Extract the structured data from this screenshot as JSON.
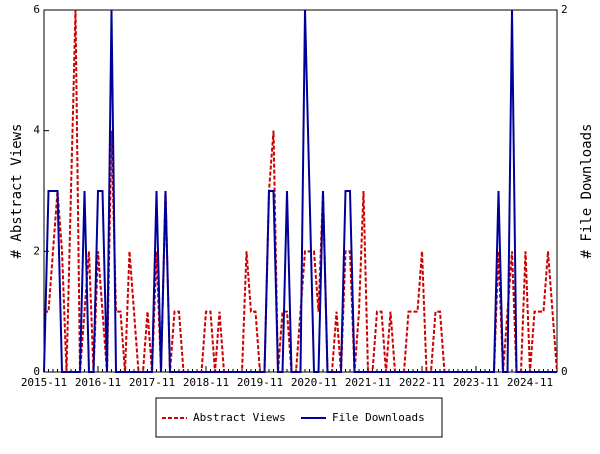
{
  "chart_data": {
    "type": "line",
    "categories": [
      "2015-11",
      null,
      null,
      null,
      null,
      null,
      null,
      null,
      null,
      null,
      null,
      null,
      "2016-11",
      null,
      null,
      null,
      null,
      null,
      null,
      null,
      null,
      null,
      null,
      null,
      "2017-11",
      null,
      null,
      null,
      null,
      null,
      null,
      null,
      null,
      null,
      null,
      null,
      "2018-11",
      null,
      null,
      null,
      null,
      null,
      null,
      null,
      null,
      null,
      null,
      null,
      "2019-11",
      null,
      null,
      null,
      null,
      null,
      null,
      null,
      null,
      null,
      null,
      null,
      "2020-11",
      null,
      null,
      null,
      null,
      null,
      null,
      null,
      null,
      null,
      null,
      null,
      "2021-11",
      null,
      null,
      null,
      null,
      null,
      null,
      null,
      null,
      null,
      null,
      null,
      "2022-11",
      null,
      null,
      null,
      null,
      null,
      null,
      null,
      null,
      null,
      null,
      null,
      "2023-11",
      null,
      null,
      null,
      null,
      null,
      null,
      null,
      null,
      null,
      null,
      null,
      "2024-11",
      null,
      null,
      null,
      null,
      null,
      null
    ],
    "series": [
      {
        "name": "Abstract Views",
        "color": "#cc0000",
        "dash": true,
        "values": [
          1,
          1,
          2,
          3,
          2,
          0,
          3,
          6,
          0,
          1,
          2,
          0,
          2,
          1,
          0,
          4,
          1,
          1,
          0,
          2,
          1,
          0,
          0,
          1,
          0,
          2,
          0,
          3,
          0,
          1,
          1,
          0,
          0,
          0,
          0,
          0,
          1,
          1,
          0,
          1,
          0,
          0,
          0,
          0,
          0,
          2,
          1,
          1,
          0,
          0,
          3,
          4,
          0,
          1,
          1,
          0,
          0,
          1,
          2,
          2,
          2,
          1,
          3,
          0,
          0,
          1,
          0,
          2,
          2,
          0,
          1,
          3,
          0,
          0,
          1,
          1,
          0,
          1,
          0,
          0,
          0,
          1,
          1,
          1,
          2,
          0,
          0,
          1,
          1,
          0,
          0,
          0,
          0,
          0,
          0,
          0,
          0,
          0,
          0,
          0,
          0,
          2,
          0,
          1,
          2,
          0,
          0,
          2,
          0,
          1,
          1,
          1,
          2,
          1,
          0
        ]
      },
      {
        "name": "File Downloads",
        "color": "#000099",
        "axis": "y2",
        "values": [
          0,
          1,
          1,
          1,
          0,
          0,
          0,
          0,
          0,
          1,
          0,
          0,
          1,
          1,
          0,
          2,
          0,
          0,
          0,
          0,
          0,
          0,
          0,
          0,
          0,
          1,
          0,
          1,
          0,
          0,
          0,
          0,
          0,
          0,
          0,
          0,
          0,
          0,
          0,
          0,
          0,
          0,
          0,
          0,
          0,
          0,
          0,
          0,
          0,
          0,
          1,
          1,
          0,
          0,
          1,
          0,
          0,
          0,
          2,
          1,
          0,
          0,
          1,
          0,
          0,
          0,
          0,
          1,
          1,
          0,
          0,
          0,
          0,
          0,
          0,
          0,
          0,
          0,
          0,
          0,
          0,
          0,
          0,
          0,
          0,
          0,
          0,
          0,
          0,
          0,
          0,
          0,
          0,
          0,
          0,
          0,
          0,
          0,
          0,
          0,
          0,
          1,
          0,
          0,
          2,
          0,
          0,
          0,
          0,
          0,
          0,
          0,
          0,
          0,
          0
        ]
      }
    ],
    "ylabel": "# Abstract Views",
    "y2label": "# File Downloads",
    "ylim": [
      0,
      6
    ],
    "yticks": [
      0,
      2,
      4,
      6
    ],
    "y2lim": [
      0,
      2
    ],
    "y2ticks": [
      0,
      2
    ]
  }
}
